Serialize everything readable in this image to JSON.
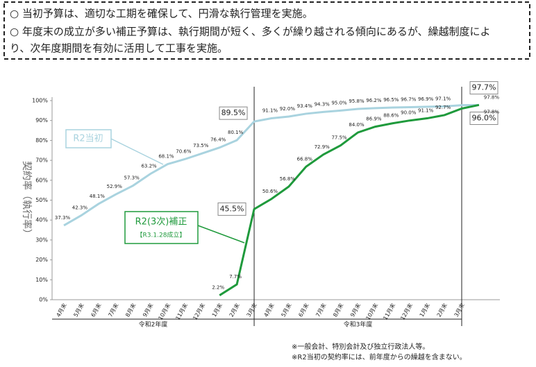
{
  "header": {
    "lines": [
      "○ 当初予算は、適切な工期を確保して、円滑な執行管理を実施。",
      "○  年度末の成立が多い補正予算は、執行期間が短く、多くが繰り越される傾向にあるが、繰越制度によ",
      "り、次年度期間を有効に活用して工事を実施。"
    ]
  },
  "chart_data": {
    "type": "line",
    "y_label": "契約率（執行率）",
    "categories": [
      "4月末",
      "5月末",
      "6月末",
      "7月末",
      "8月末",
      "9月末",
      "10月末",
      "11月末",
      "12月末",
      "1月末",
      "2月末",
      "3月末",
      "4月末",
      "5月末",
      "6月末",
      "7月末",
      "8月末",
      "9月末",
      "10月末",
      "11月末",
      "12月末",
      "1月末",
      "2月末",
      "3月末",
      null
    ],
    "year_labels": [
      "令和2年度",
      "令和3年度"
    ],
    "series": [
      {
        "name": "R2当初",
        "color": "#a9d3df",
        "values": [
          37.3,
          42.3,
          48.1,
          52.9,
          57.3,
          63.2,
          68.1,
          70.6,
          73.5,
          76.4,
          80.1,
          89.5,
          91.1,
          92.0,
          93.4,
          94.3,
          95.0,
          95.8,
          96.2,
          96.5,
          96.7,
          96.9,
          97.1,
          97.7,
          97.8
        ],
        "value_labels": [
          "37.3%",
          "42.3%",
          "48.1%",
          "52.9%",
          "57.3%",
          "63.2%",
          "68.1%",
          "70.6%",
          "73.5%",
          "76.4%",
          "80.1%",
          "89.5%",
          "91.1%",
          "92.0%",
          "93.4%",
          "94.3%",
          "95.0%",
          "95.8%",
          "96.2%",
          "96.5%",
          "96.7%",
          "96.9%",
          "97.1%",
          "97.7%",
          "97.8%"
        ]
      },
      {
        "name": "R2(3次)補正",
        "subname": "【R3.1.28成立】",
        "color": "#1f9a3c",
        "values": [
          null,
          null,
          null,
          null,
          null,
          null,
          null,
          null,
          null,
          2.2,
          7.7,
          45.5,
          50.6,
          56.8,
          66.8,
          72.9,
          77.5,
          84.0,
          86.9,
          88.6,
          90.0,
          91.1,
          92.7,
          96.0,
          97.8
        ],
        "value_labels": [
          null,
          null,
          null,
          null,
          null,
          null,
          null,
          null,
          null,
          "2.2%",
          "7.7%",
          "45.5%",
          "50.6%",
          "56.8%",
          "66.8%",
          "72.9%",
          "77.5%",
          "84.0%",
          "86.9%",
          "88.6%",
          "90.0%",
          "91.1%",
          "92.7%",
          "96.0%",
          "97.8%"
        ]
      }
    ],
    "ylim": [
      0,
      100
    ],
    "yticks": [
      {
        "value": 0,
        "label": "0%"
      },
      {
        "value": 10,
        "label": "10%"
      },
      {
        "value": 20,
        "label": "20%"
      },
      {
        "value": 30,
        "label": "30%"
      },
      {
        "value": 40,
        "label": "40%"
      },
      {
        "value": 50,
        "label": "50%"
      },
      {
        "value": 60,
        "label": "60%"
      },
      {
        "value": 70,
        "label": "70%"
      },
      {
        "value": 80,
        "label": "80%"
      },
      {
        "value": 90,
        "label": "90%"
      },
      {
        "value": 100,
        "label": "100%"
      }
    ],
    "grid": false
  },
  "footnotes": [
    "※一般会計、特別会計及び独立行政法人等。",
    "※R2当初の契約率には、前年度からの繰越を含まない。"
  ]
}
